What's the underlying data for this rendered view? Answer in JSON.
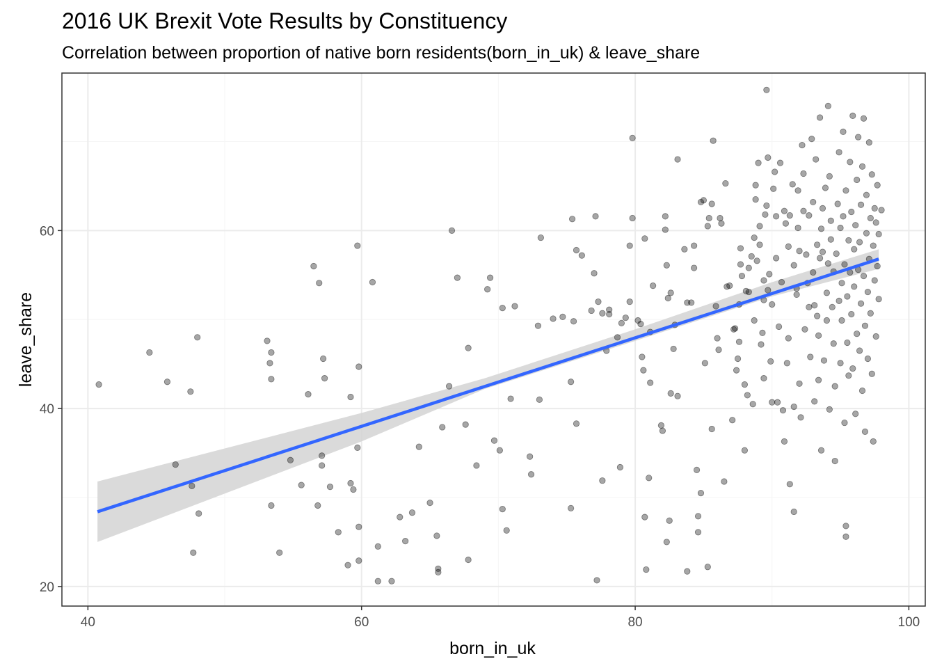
{
  "chart_data": {
    "type": "scatter",
    "title": "2016 UK Brexit Vote Results by Constituency",
    "subtitle": "Correlation between proportion of native born residents(born_in_uk) & leave_share",
    "xlabel": "born_in_uk",
    "ylabel": "leave_share",
    "xlim": [
      38.1,
      101.2
    ],
    "ylim": [
      17.8,
      77.7
    ],
    "x_ticks": [
      40,
      60,
      80,
      100
    ],
    "y_ticks": [
      20,
      40,
      60
    ],
    "x_minor": [
      50,
      70,
      90
    ],
    "y_minor": [
      30,
      50,
      70
    ],
    "grid": true,
    "colors": {
      "point": "#000000",
      "point_opacity": 0.35,
      "smooth_line": "#3366FF",
      "ribbon": "#D3D3D3",
      "panel_border": "#333333",
      "grid_major": "#EBEBEB",
      "grid_minor": "#F5F5F5"
    },
    "smooth": {
      "method": "lm",
      "line": [
        [
          40.7,
          28.4
        ],
        [
          97.8,
          56.8
        ]
      ],
      "ribbon_upper": [
        [
          40.7,
          31.8
        ],
        [
          60.0,
          39.5
        ],
        [
          69.0,
          43.4
        ],
        [
          80.0,
          48.9
        ],
        [
          90.0,
          54.2
        ],
        [
          97.8,
          57.9
        ]
      ],
      "ribbon_lower": [
        [
          40.7,
          25.0
        ],
        [
          60.0,
          36.3
        ],
        [
          69.0,
          42.2
        ],
        [
          80.0,
          47.6
        ],
        [
          90.0,
          52.6
        ],
        [
          97.8,
          55.7
        ]
      ]
    },
    "points": [
      [
        40.8,
        42.7
      ],
      [
        44.5,
        46.3
      ],
      [
        45.8,
        43.0
      ],
      [
        46.4,
        33.7
      ],
      [
        47.5,
        41.9
      ],
      [
        47.6,
        31.3
      ],
      [
        47.7,
        23.8
      ],
      [
        48.0,
        48.0
      ],
      [
        48.1,
        28.2
      ],
      [
        53.1,
        47.6
      ],
      [
        53.3,
        45.1
      ],
      [
        53.4,
        46.3
      ],
      [
        53.4,
        43.3
      ],
      [
        53.4,
        29.1
      ],
      [
        54.0,
        23.8
      ],
      [
        54.8,
        34.2
      ],
      [
        55.6,
        31.4
      ],
      [
        56.1,
        41.6
      ],
      [
        56.5,
        56.0
      ],
      [
        56.8,
        29.1
      ],
      [
        56.9,
        54.1
      ],
      [
        57.1,
        34.7
      ],
      [
        57.1,
        33.6
      ],
      [
        57.2,
        45.6
      ],
      [
        57.3,
        43.4
      ],
      [
        57.7,
        31.2
      ],
      [
        58.3,
        26.1
      ],
      [
        59.0,
        22.4
      ],
      [
        59.2,
        41.3
      ],
      [
        59.2,
        31.6
      ],
      [
        59.4,
        30.9
      ],
      [
        59.7,
        58.3
      ],
      [
        59.7,
        35.6
      ],
      [
        59.8,
        44.7
      ],
      [
        59.8,
        26.7
      ],
      [
        59.8,
        22.9
      ],
      [
        60.8,
        54.2
      ],
      [
        61.2,
        24.5
      ],
      [
        61.2,
        20.6
      ],
      [
        62.2,
        20.6
      ],
      [
        62.8,
        27.8
      ],
      [
        63.2,
        25.1
      ],
      [
        63.7,
        28.3
      ],
      [
        64.2,
        35.7
      ],
      [
        65.0,
        29.4
      ],
      [
        65.5,
        25.7
      ],
      [
        65.6,
        22.0
      ],
      [
        65.6,
        21.6
      ],
      [
        65.9,
        37.9
      ],
      [
        66.4,
        42.5
      ],
      [
        66.6,
        60.0
      ],
      [
        67.0,
        54.7
      ],
      [
        67.6,
        38.2
      ],
      [
        67.8,
        46.8
      ],
      [
        67.8,
        23.0
      ],
      [
        68.4,
        33.6
      ],
      [
        69.2,
        53.4
      ],
      [
        69.4,
        54.7
      ],
      [
        69.7,
        36.4
      ],
      [
        70.1,
        35.3
      ],
      [
        70.3,
        51.3
      ],
      [
        70.3,
        28.7
      ],
      [
        70.6,
        26.3
      ],
      [
        70.9,
        41.1
      ],
      [
        71.2,
        51.5
      ],
      [
        72.3,
        34.6
      ],
      [
        72.4,
        32.6
      ],
      [
        72.9,
        49.3
      ],
      [
        73.0,
        41.0
      ],
      [
        73.1,
        59.2
      ],
      [
        74.0,
        50.1
      ],
      [
        74.7,
        50.3
      ],
      [
        75.3,
        43.0
      ],
      [
        75.3,
        28.8
      ],
      [
        75.4,
        61.3
      ],
      [
        75.5,
        49.8
      ],
      [
        75.7,
        38.3
      ],
      [
        75.7,
        57.8
      ],
      [
        76.1,
        57.2
      ],
      [
        76.8,
        51.0
      ],
      [
        77.0,
        55.2
      ],
      [
        77.1,
        61.6
      ],
      [
        77.2,
        20.7
      ],
      [
        77.3,
        52.0
      ],
      [
        77.6,
        50.7
      ],
      [
        77.6,
        31.9
      ],
      [
        77.9,
        46.5
      ],
      [
        78.1,
        51.1
      ],
      [
        78.1,
        50.6
      ],
      [
        78.7,
        48.0
      ],
      [
        78.9,
        33.4
      ],
      [
        79.0,
        49.6
      ],
      [
        79.3,
        50.2
      ],
      [
        79.6,
        52.0
      ],
      [
        79.6,
        58.3
      ],
      [
        79.8,
        61.4
      ],
      [
        79.8,
        70.4
      ],
      [
        80.2,
        49.9
      ],
      [
        80.4,
        49.5
      ],
      [
        80.5,
        45.8
      ],
      [
        80.6,
        44.3
      ],
      [
        80.7,
        59.1
      ],
      [
        80.7,
        27.8
      ],
      [
        80.8,
        21.9
      ],
      [
        81.0,
        32.2
      ],
      [
        81.1,
        48.6
      ],
      [
        81.1,
        42.9
      ],
      [
        81.3,
        53.8
      ],
      [
        81.9,
        38.1
      ],
      [
        82.0,
        37.5
      ],
      [
        82.2,
        60.1
      ],
      [
        82.2,
        61.6
      ],
      [
        82.3,
        25.0
      ],
      [
        82.3,
        56.1
      ],
      [
        82.4,
        52.4
      ],
      [
        82.5,
        27.4
      ],
      [
        82.6,
        53.0
      ],
      [
        82.6,
        41.7
      ],
      [
        82.8,
        46.7
      ],
      [
        82.9,
        49.4
      ],
      [
        83.1,
        68.0
      ],
      [
        83.1,
        41.4
      ],
      [
        83.6,
        57.9
      ],
      [
        83.8,
        51.9
      ],
      [
        83.8,
        21.7
      ],
      [
        84.1,
        51.9
      ],
      [
        84.3,
        58.3
      ],
      [
        84.3,
        55.8
      ],
      [
        84.5,
        33.1
      ],
      [
        84.6,
        27.9
      ],
      [
        84.6,
        26.1
      ],
      [
        84.8,
        63.2
      ],
      [
        84.8,
        30.5
      ],
      [
        85.0,
        63.4
      ],
      [
        85.1,
        45.1
      ],
      [
        85.3,
        22.2
      ],
      [
        85.3,
        60.5
      ],
      [
        85.4,
        61.4
      ],
      [
        85.6,
        37.7
      ],
      [
        85.6,
        63.0
      ],
      [
        85.7,
        70.1
      ],
      [
        85.9,
        51.5
      ],
      [
        86.0,
        47.9
      ],
      [
        86.1,
        46.6
      ],
      [
        86.2,
        61.4
      ],
      [
        86.3,
        60.8
      ],
      [
        86.5,
        31.8
      ],
      [
        86.6,
        65.3
      ],
      [
        86.7,
        53.7
      ],
      [
        86.9,
        53.8
      ],
      [
        87.1,
        38.7
      ],
      [
        87.2,
        48.9
      ],
      [
        87.3,
        49.0
      ],
      [
        87.4,
        44.3
      ],
      [
        87.5,
        45.6
      ],
      [
        87.6,
        47.5
      ],
      [
        87.6,
        51.7
      ],
      [
        87.7,
        58.0
      ],
      [
        87.7,
        56.2
      ],
      [
        87.8,
        54.9
      ],
      [
        88.0,
        42.7
      ],
      [
        88.0,
        35.3
      ],
      [
        88.1,
        53.2
      ],
      [
        88.2,
        41.5
      ],
      [
        88.3,
        55.8
      ],
      [
        88.3,
        53.1
      ],
      [
        88.5,
        57.1
      ],
      [
        88.6,
        40.5
      ],
      [
        88.7,
        59.2
      ],
      [
        88.7,
        49.9
      ],
      [
        88.8,
        65.1
      ],
      [
        88.8,
        63.5
      ],
      [
        88.9,
        56.6
      ],
      [
        89.0,
        67.6
      ],
      [
        89.1,
        60.5
      ],
      [
        89.1,
        58.4
      ],
      [
        89.2,
        47.2
      ],
      [
        89.3,
        48.5
      ],
      [
        89.4,
        43.4
      ],
      [
        89.4,
        52.2
      ],
      [
        89.4,
        54.4
      ],
      [
        89.5,
        61.8
      ],
      [
        89.6,
        62.8
      ],
      [
        89.6,
        75.8
      ],
      [
        89.7,
        68.2
      ],
      [
        89.7,
        53.3
      ],
      [
        89.8,
        55.1
      ],
      [
        89.9,
        45.3
      ],
      [
        90.0,
        40.7
      ],
      [
        90.0,
        51.7
      ],
      [
        90.1,
        64.7
      ],
      [
        90.2,
        66.6
      ],
      [
        90.3,
        56.9
      ],
      [
        90.3,
        61.6
      ],
      [
        90.4,
        40.7
      ],
      [
        90.5,
        49.2
      ],
      [
        90.6,
        67.6
      ],
      [
        90.7,
        54.2
      ],
      [
        90.8,
        39.8
      ],
      [
        90.9,
        36.3
      ],
      [
        90.9,
        62.2
      ],
      [
        91.0,
        60.8
      ],
      [
        91.1,
        45.1
      ],
      [
        91.2,
        58.2
      ],
      [
        91.2,
        47.9
      ],
      [
        91.3,
        31.5
      ],
      [
        91.3,
        61.7
      ],
      [
        91.5,
        65.2
      ],
      [
        91.6,
        28.4
      ],
      [
        91.6,
        40.2
      ],
      [
        91.6,
        56.1
      ],
      [
        91.8,
        53.5
      ],
      [
        91.8,
        52.8
      ],
      [
        91.9,
        60.3
      ],
      [
        91.9,
        64.5
      ],
      [
        92.0,
        57.7
      ],
      [
        92.0,
        42.8
      ],
      [
        92.1,
        39.0
      ],
      [
        92.2,
        69.6
      ],
      [
        92.3,
        62.2
      ],
      [
        92.3,
        66.4
      ],
      [
        92.4,
        48.9
      ],
      [
        92.5,
        57.3
      ],
      [
        92.6,
        54.1
      ],
      [
        92.7,
        61.7
      ],
      [
        92.7,
        51.4
      ],
      [
        92.8,
        45.8
      ],
      [
        92.9,
        70.3
      ],
      [
        93.0,
        63.2
      ],
      [
        93.0,
        55.3
      ],
      [
        93.1,
        51.6
      ],
      [
        93.1,
        40.8
      ],
      [
        93.2,
        68.0
      ],
      [
        93.3,
        58.4
      ],
      [
        93.3,
        50.4
      ],
      [
        93.4,
        43.2
      ],
      [
        93.4,
        48.2
      ],
      [
        93.5,
        56.9
      ],
      [
        93.5,
        72.7
      ],
      [
        93.6,
        60.2
      ],
      [
        93.6,
        35.3
      ],
      [
        93.7,
        57.6
      ],
      [
        93.7,
        62.5
      ],
      [
        93.8,
        45.4
      ],
      [
        93.9,
        64.8
      ],
      [
        94.0,
        49.9
      ],
      [
        94.0,
        53.0
      ],
      [
        94.1,
        74.0
      ],
      [
        94.1,
        56.3
      ],
      [
        94.2,
        39.9
      ],
      [
        94.2,
        66.1
      ],
      [
        94.3,
        61.1
      ],
      [
        94.3,
        59.0
      ],
      [
        94.4,
        51.4
      ],
      [
        94.5,
        47.3
      ],
      [
        94.5,
        55.4
      ],
      [
        94.6,
        42.5
      ],
      [
        94.6,
        34.1
      ],
      [
        94.7,
        57.4
      ],
      [
        94.8,
        63.0
      ],
      [
        94.9,
        52.1
      ],
      [
        94.9,
        68.8
      ],
      [
        95.0,
        60.3
      ],
      [
        95.0,
        45.1
      ],
      [
        95.1,
        54.1
      ],
      [
        95.1,
        49.9
      ],
      [
        95.2,
        61.6
      ],
      [
        95.2,
        71.1
      ],
      [
        95.3,
        56.2
      ],
      [
        95.3,
        38.4
      ],
      [
        95.4,
        25.6
      ],
      [
        95.4,
        26.8
      ],
      [
        95.4,
        64.5
      ],
      [
        95.5,
        52.6
      ],
      [
        95.5,
        47.4
      ],
      [
        95.6,
        58.9
      ],
      [
        95.6,
        43.7
      ],
      [
        95.7,
        67.7
      ],
      [
        95.7,
        55.3
      ],
      [
        95.8,
        50.6
      ],
      [
        95.8,
        62.1
      ],
      [
        95.9,
        72.9
      ],
      [
        95.9,
        44.5
      ],
      [
        96.0,
        57.9
      ],
      [
        96.0,
        53.7
      ],
      [
        96.1,
        60.6
      ],
      [
        96.1,
        39.4
      ],
      [
        96.2,
        48.4
      ],
      [
        96.2,
        65.7
      ],
      [
        96.3,
        55.6
      ],
      [
        96.3,
        70.5
      ],
      [
        96.4,
        46.5
      ],
      [
        96.4,
        58.7
      ],
      [
        96.5,
        62.9
      ],
      [
        96.5,
        51.8
      ],
      [
        96.6,
        42.0
      ],
      [
        96.6,
        67.2
      ],
      [
        96.7,
        54.9
      ],
      [
        96.7,
        72.6
      ],
      [
        96.8,
        49.3
      ],
      [
        96.8,
        37.4
      ],
      [
        96.9,
        59.7
      ],
      [
        96.9,
        64.0
      ],
      [
        97.0,
        53.1
      ],
      [
        97.0,
        45.6
      ],
      [
        97.1,
        56.8
      ],
      [
        97.1,
        69.9
      ],
      [
        97.2,
        61.4
      ],
      [
        97.2,
        50.7
      ],
      [
        97.3,
        66.3
      ],
      [
        97.3,
        43.9
      ],
      [
        97.4,
        58.3
      ],
      [
        97.4,
        36.3
      ],
      [
        97.5,
        54.4
      ],
      [
        97.5,
        62.5
      ],
      [
        97.6,
        48.1
      ],
      [
        97.6,
        60.9
      ],
      [
        97.7,
        56.0
      ],
      [
        97.7,
        65.1
      ],
      [
        97.8,
        52.3
      ],
      [
        97.8,
        59.6
      ],
      [
        98.0,
        62.3
      ]
    ]
  }
}
